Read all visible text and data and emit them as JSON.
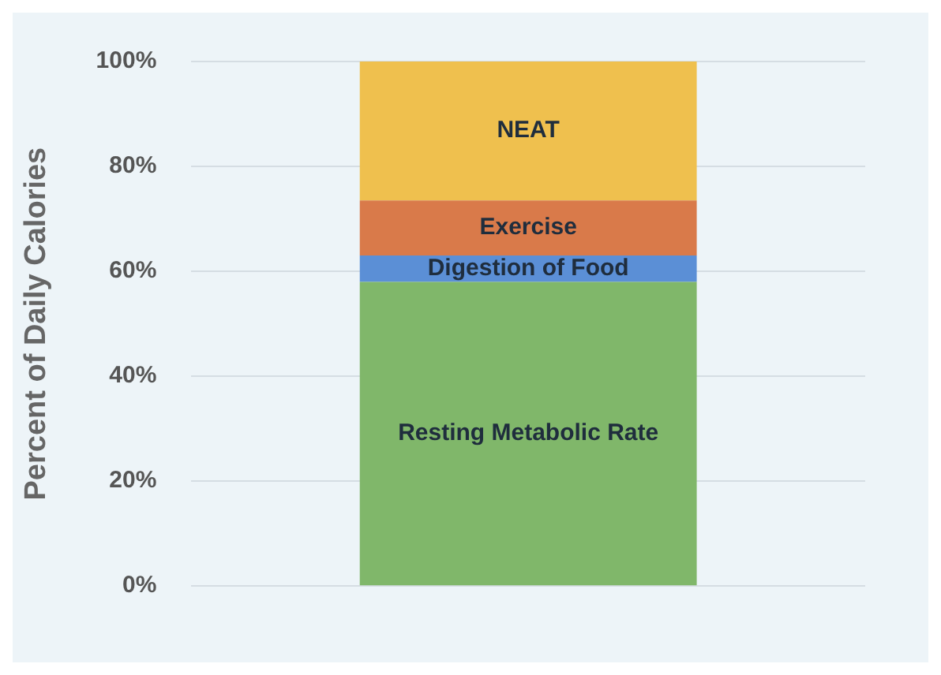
{
  "chart_data": {
    "type": "bar",
    "stacked": true,
    "categories": [
      null
    ],
    "ylabel": "Percent of Daily Calories",
    "ylim": [
      0,
      100
    ],
    "yticks": [
      {
        "value": 0,
        "label": "0%"
      },
      {
        "value": 20,
        "label": "20%"
      },
      {
        "value": 40,
        "label": "40%"
      },
      {
        "value": 60,
        "label": "60%"
      },
      {
        "value": 80,
        "label": "80%"
      },
      {
        "value": 100,
        "label": "100%"
      }
    ],
    "grid": "y",
    "legend": false,
    "series": [
      {
        "name": "Resting Metabolic Rate",
        "color": "#80b76a",
        "values": [
          58
        ]
      },
      {
        "name": "Digestion of Food",
        "color": "#5b8fd6",
        "values": [
          5
        ]
      },
      {
        "name": "Exercise",
        "color": "#d97a4a",
        "values": [
          10.5
        ]
      },
      {
        "name": "NEAT",
        "color": "#efc04e",
        "values": [
          26.5
        ]
      }
    ]
  }
}
